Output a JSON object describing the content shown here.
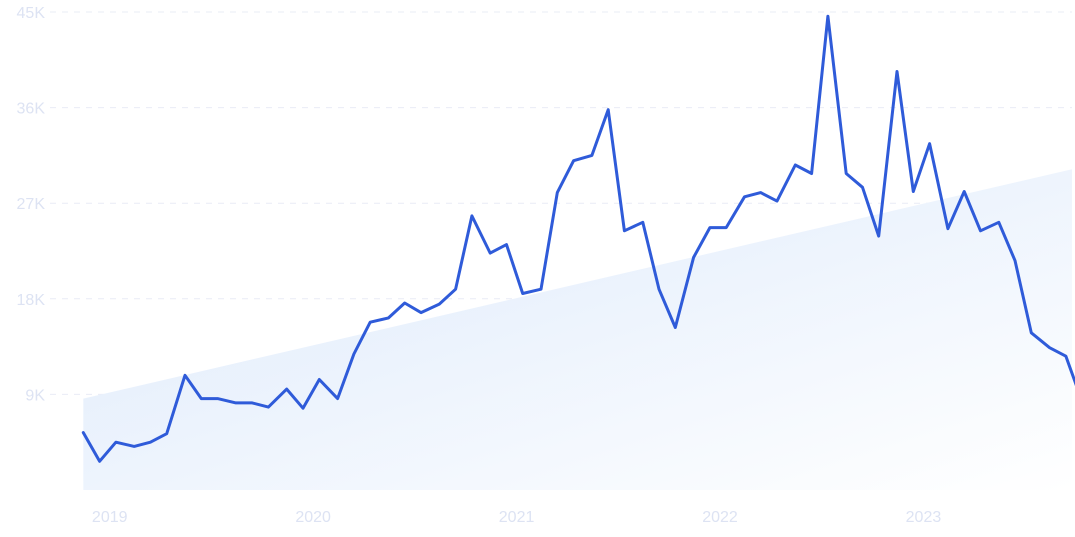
{
  "chart_data": {
    "type": "line",
    "title": "",
    "xlabel": "",
    "ylabel": "",
    "y_ticks": [
      {
        "value": 9000,
        "label": "9K"
      },
      {
        "value": 18000,
        "label": "18K"
      },
      {
        "value": 27000,
        "label": "27K"
      },
      {
        "value": 36000,
        "label": "36K"
      },
      {
        "value": 45000,
        "label": "45K"
      }
    ],
    "x_ticks": [
      {
        "value": 2019.0,
        "label": "2019"
      },
      {
        "value": 2020.0,
        "label": "2020"
      },
      {
        "value": 2021.0,
        "label": "2021"
      },
      {
        "value": 2022.0,
        "label": "2022"
      },
      {
        "value": 2023.0,
        "label": "2023"
      }
    ],
    "xlim": [
      2018.79,
      2023.74
    ],
    "ylim": [
      0,
      45000
    ],
    "grid": true,
    "colors": {
      "line": "#2f5bd9",
      "trend_fill_top": "#dce9fb",
      "trend_fill_bottom": "#ffffff",
      "tick_text": "#dde3f3",
      "grid": "#e9ecf6"
    },
    "trend": {
      "start": {
        "x": 2018.88,
        "y": 8600
      },
      "end": {
        "x": 2023.74,
        "y": 30200
      }
    },
    "series": [
      {
        "name": "",
        "x": [
          2018.88,
          2018.96,
          2019.04,
          2019.13,
          2019.21,
          2019.29,
          2019.38,
          2019.46,
          2019.54,
          2019.63,
          2019.71,
          2019.79,
          2019.88,
          2019.96,
          2020.04,
          2020.13,
          2020.21,
          2020.29,
          2020.38,
          2020.46,
          2020.54,
          2020.63,
          2020.71,
          2020.79,
          2020.88,
          2020.96,
          2021.04,
          2021.13,
          2021.21,
          2021.29,
          2021.38,
          2021.46,
          2021.54,
          2021.63,
          2021.71,
          2021.79,
          2021.88,
          2021.96,
          2022.04,
          2022.13,
          2022.21,
          2022.29,
          2022.38,
          2022.46,
          2022.54,
          2022.63,
          2022.71,
          2022.79,
          2022.88,
          2022.96,
          2023.04,
          2023.13,
          2023.21,
          2023.29,
          2023.38,
          2023.46,
          2023.54,
          2023.63,
          2023.71,
          2023.79
        ],
        "values": [
          5400,
          2700,
          4500,
          4100,
          4500,
          5300,
          10800,
          8600,
          8600,
          8200,
          8200,
          7800,
          9500,
          7700,
          10400,
          8600,
          12800,
          15800,
          16200,
          17600,
          16700,
          17500,
          18900,
          25800,
          22300,
          23100,
          18500,
          18900,
          28000,
          31000,
          31500,
          35800,
          24400,
          25200,
          18900,
          15300,
          21900,
          24700,
          24700,
          27600,
          28000,
          27200,
          30600,
          29800,
          44600,
          29800,
          28500,
          23900,
          39400,
          28100,
          32600,
          24600,
          28100,
          24400,
          25200,
          21600,
          14800,
          13400,
          12600,
          8300
        ]
      }
    ]
  }
}
